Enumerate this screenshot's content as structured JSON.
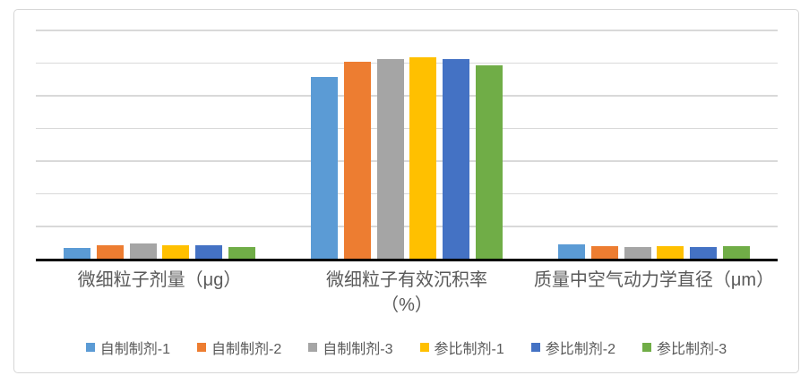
{
  "chart_data": {
    "type": "bar",
    "title": "",
    "xlabel": "",
    "ylabel": "",
    "categories": [
      "微细粒子剂量（μg）",
      "微细粒子有效沉积率（%）",
      "质量中空气动力学直径（μm）"
    ],
    "category_label_lines": [
      [
        "微细粒子剂量（μg）"
      ],
      [
        "微细粒子有效沉积率",
        "（%）"
      ],
      [
        "质量中空气动力学直径（μm）"
      ]
    ],
    "series": [
      {
        "name": "自制制剂-1",
        "color": "#5B9BD5",
        "values": [
          3.3,
          55.5,
          4.3
        ]
      },
      {
        "name": "自制制剂-2",
        "color": "#ED7D31",
        "values": [
          4.1,
          60.2,
          3.7
        ]
      },
      {
        "name": "自制制剂-3",
        "color": "#A5A5A5",
        "values": [
          4.7,
          61.0,
          3.5
        ]
      },
      {
        "name": "参比制剂-1",
        "color": "#FFC000",
        "values": [
          4.1,
          61.6,
          3.8
        ]
      },
      {
        "name": "参比制剂-2",
        "color": "#4472C4",
        "values": [
          4.1,
          61.1,
          3.6
        ]
      },
      {
        "name": "参比制剂-3",
        "color": "#70AD47",
        "values": [
          3.6,
          59.1,
          3.7
        ]
      }
    ],
    "ylim": [
      0,
      70
    ],
    "gridline_step": 10,
    "grid": true,
    "y_tick_labels_visible": false,
    "legend_position": "bottom",
    "colors": {
      "gridline": "#d9d9d9",
      "axis_line": "#000000",
      "text": "#595959",
      "frame_border": "#d6d6d6",
      "background": "#ffffff"
    }
  }
}
